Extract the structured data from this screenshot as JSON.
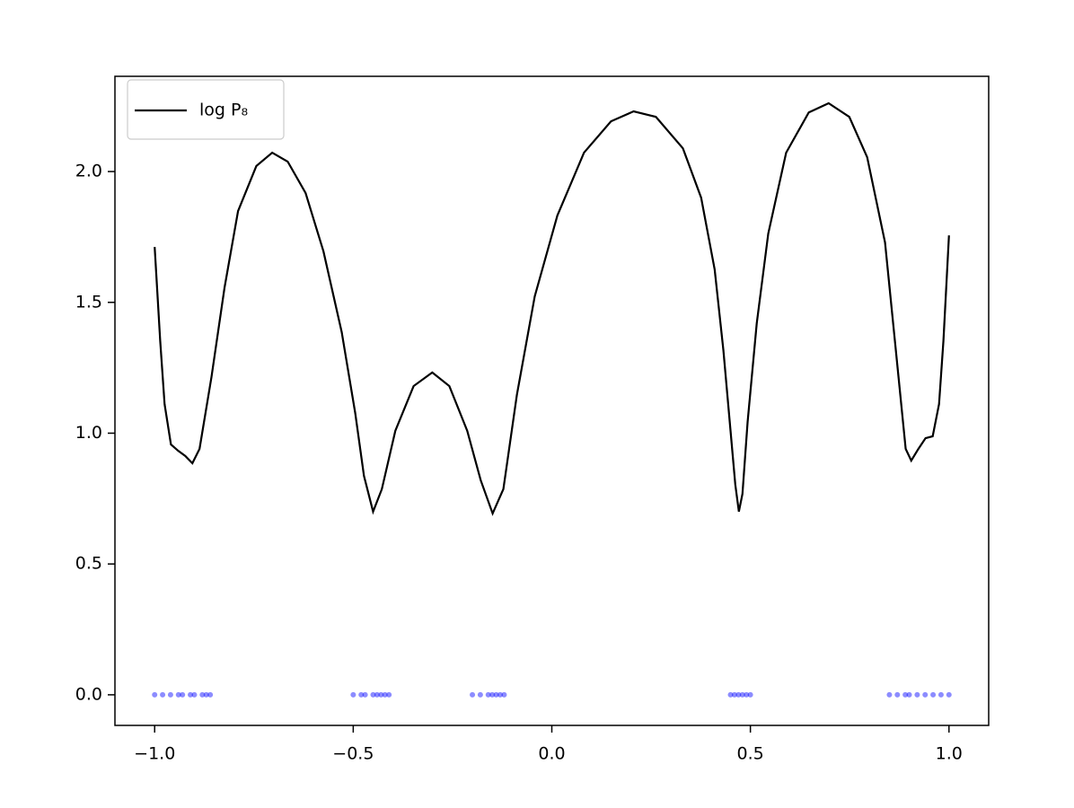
{
  "chart_data": {
    "type": "line",
    "xlim": [
      -1.1,
      1.1
    ],
    "ylim": [
      -0.117,
      2.364
    ],
    "xticks": [
      {
        "value": -1,
        "label": "−1.0"
      },
      {
        "value": -0.5,
        "label": "−0.5"
      },
      {
        "value": 0,
        "label": "0.0"
      },
      0.5,
      {
        "value": 1,
        "label": "1.0"
      }
    ],
    "yticks": [
      {
        "value": 0,
        "label": "0.0"
      },
      0.5,
      {
        "value": 1,
        "label": "1.0"
      },
      1.5,
      {
        "value": 2,
        "label": "2.0"
      }
    ],
    "grid": false,
    "legend": "upper left",
    "series": [
      {
        "name": "log P₈",
        "type": "line",
        "color": "#000000",
        "x": [
          -1.0,
          -0.986,
          -0.975,
          -0.959,
          -0.941,
          -0.923,
          -0.905,
          -0.887,
          -0.857,
          -0.824,
          -0.79,
          -0.744,
          -0.704,
          -0.665,
          -0.62,
          -0.575,
          -0.529,
          -0.495,
          -0.473,
          -0.45,
          -0.428,
          -0.394,
          -0.348,
          -0.301,
          -0.258,
          -0.213,
          -0.179,
          -0.149,
          -0.122,
          -0.088,
          -0.043,
          0.014,
          0.081,
          0.149,
          0.206,
          0.262,
          0.33,
          0.376,
          0.41,
          0.432,
          0.45,
          0.462,
          0.471,
          0.48,
          0.493,
          0.516,
          0.545,
          0.59,
          0.647,
          0.697,
          0.749,
          0.794,
          0.839,
          0.873,
          0.891,
          0.905,
          0.923,
          0.941,
          0.959,
          0.975,
          0.986,
          1.0
        ],
        "values": [
          1.712,
          1.352,
          1.111,
          0.957,
          0.933,
          0.913,
          0.885,
          0.94,
          1.214,
          1.557,
          1.849,
          2.021,
          2.072,
          2.038,
          1.918,
          1.695,
          1.386,
          1.077,
          0.837,
          0.7,
          0.786,
          1.009,
          1.18,
          1.232,
          1.18,
          1.009,
          0.82,
          0.693,
          0.786,
          1.146,
          1.523,
          1.832,
          2.072,
          2.192,
          2.23,
          2.209,
          2.089,
          1.9,
          1.626,
          1.317,
          1.009,
          0.803,
          0.7,
          0.768,
          1.043,
          1.42,
          1.763,
          2.072,
          2.226,
          2.261,
          2.209,
          2.055,
          1.729,
          1.214,
          0.94,
          0.895,
          0.94,
          0.981,
          0.988,
          1.111,
          1.352,
          1.756
        ]
      },
      {
        "type": "scatter",
        "color": "#0000ff",
        "x": [
          -1.0,
          -0.98,
          -0.96,
          -0.94,
          -0.93,
          -0.91,
          -0.9,
          -0.88,
          -0.87,
          -0.86,
          -0.5,
          -0.48,
          -0.47,
          -0.45,
          -0.44,
          -0.43,
          -0.42,
          -0.41,
          -0.2,
          -0.18,
          -0.16,
          -0.15,
          -0.14,
          -0.13,
          -0.12,
          0.45,
          0.46,
          0.47,
          0.48,
          0.49,
          0.5,
          0.85,
          0.87,
          0.89,
          0.9,
          0.92,
          0.94,
          0.96,
          0.98,
          1.0
        ],
        "values": [
          0,
          0,
          0,
          0,
          0,
          0,
          0,
          0,
          0,
          0,
          0,
          0,
          0,
          0,
          0,
          0,
          0,
          0,
          0,
          0,
          0,
          0,
          0,
          0,
          0,
          0,
          0,
          0,
          0,
          0,
          0,
          0,
          0,
          0,
          0,
          0,
          0,
          0,
          0,
          0
        ]
      }
    ]
  }
}
